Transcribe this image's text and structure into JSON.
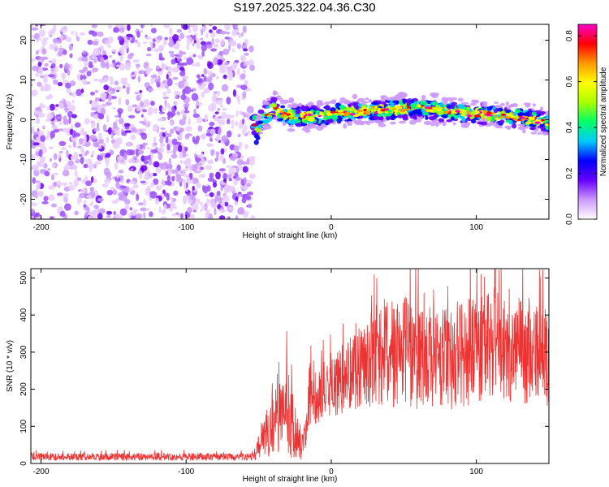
{
  "title": "S197.2025.322.04.36.C30",
  "chart_data": [
    {
      "type": "heatmap",
      "title": "S197.2025.322.04.36.C30",
      "xlabel": "Height of straight line (km)",
      "ylabel": "Frequency (Hz)",
      "xlim": [
        -207,
        150
      ],
      "ylim": [
        -25,
        24
      ],
      "xticks": [
        -200,
        -100,
        0,
        100
      ],
      "yticks": [
        -20,
        -10,
        0,
        10,
        20
      ],
      "colorbar": {
        "label": "Normalized spectral amplitude",
        "range": [
          0,
          0.85
        ],
        "ticks": [
          0.0,
          0.2,
          0.4,
          0.6,
          0.8
        ],
        "tick_labels": [
          "0.0",
          "0.2",
          "0.4",
          "0.6",
          "0.8"
        ],
        "colormap": [
          "#ffffff",
          "#cc99ff",
          "#6600ff",
          "#0000ff",
          "#00ccff",
          "#00ff66",
          "#aaff00",
          "#ffff00",
          "#ff9900",
          "#ff0000",
          "#ff00cc"
        ]
      },
      "regions": [
        {
          "name": "noise",
          "x_range": [
            -207,
            -54
          ],
          "freq_range": [
            -25,
            24
          ],
          "amplitude": [
            0.0,
            0.1
          ]
        },
        {
          "name": "signal",
          "x_range": [
            -54,
            150
          ],
          "center_freq": [
            {
              "x": -52,
              "f": -4
            },
            {
              "x": -48,
              "f": 0
            },
            {
              "x": -40,
              "f": 3
            },
            {
              "x": -30,
              "f": 1
            },
            {
              "x": -10,
              "f": 1
            },
            {
              "x": 0,
              "f": 1.5
            },
            {
              "x": 20,
              "f": 2
            },
            {
              "x": 40,
              "f": 2.5
            },
            {
              "x": 60,
              "f": 3
            },
            {
              "x": 80,
              "f": 2
            },
            {
              "x": 100,
              "f": 1.5
            },
            {
              "x": 120,
              "f": 1
            },
            {
              "x": 140,
              "f": 0
            },
            {
              "x": 150,
              "f": -1
            }
          ],
          "bandwidth_hz": 3,
          "peak_amplitude": 0.85
        }
      ]
    },
    {
      "type": "line",
      "xlabel": "Height of straight line (km)",
      "ylabel": "SNR (10 * v/v)",
      "xlim": [
        -207,
        150
      ],
      "ylim": [
        0,
        525
      ],
      "xticks": [
        -200,
        -100,
        0,
        100
      ],
      "yticks": [
        0,
        100,
        200,
        300,
        400,
        500
      ],
      "series": [
        {
          "name": "SNR",
          "color": "#ee3333",
          "envelope": [
            {
              "x": -207,
              "mean": 18,
              "spread": 10
            },
            {
              "x": -54,
              "mean": 18,
              "spread": 10
            },
            {
              "x": -40,
              "mean": 110,
              "spread": 90
            },
            {
              "x": -30,
              "mean": 140,
              "spread": 120
            },
            {
              "x": -20,
              "mean": 40,
              "spread": 40
            },
            {
              "x": -15,
              "mean": 180,
              "spread": 80
            },
            {
              "x": 0,
              "mean": 200,
              "spread": 80
            },
            {
              "x": 20,
              "mean": 270,
              "spread": 120
            },
            {
              "x": 50,
              "mean": 300,
              "spread": 150
            },
            {
              "x": 80,
              "mean": 280,
              "spread": 140
            },
            {
              "x": 110,
              "mean": 320,
              "spread": 150
            },
            {
              "x": 150,
              "mean": 280,
              "spread": 130
            }
          ]
        }
      ]
    }
  ]
}
